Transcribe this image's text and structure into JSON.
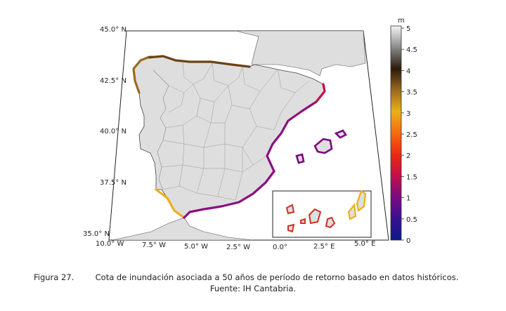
{
  "map": {
    "lat_labels": [
      "45.0° N",
      "42.5° N",
      "40.0° N",
      "37.5° N",
      "35.0° N"
    ],
    "lon_labels": [
      "10.0° W",
      "7.5° W",
      "5.0° W",
      "2.5° W",
      "0.0°",
      "2.5° E",
      "5.0° E"
    ],
    "colors": {
      "land": "#dedede",
      "sea": "#ffffff",
      "border": "#9a9a9a",
      "frame": "#222222"
    }
  },
  "colorbar": {
    "unit": "m",
    "ticks": [
      "5",
      "4.5",
      "4",
      "3.5",
      "3",
      "2.5",
      "2",
      "1.5",
      "1",
      "0.5",
      "0"
    ],
    "range": [
      0,
      5
    ]
  },
  "coast_levels_m": {
    "cantabrian": 3.6,
    "galicia": 3.3,
    "gulf_of_cadiz": 2.7,
    "alboran": 0.9,
    "mediterranean_east": 1.0,
    "balearic": 1.0,
    "canary": 2.0
  },
  "caption": {
    "label": "Figura 27.",
    "text": "Cota de inundación asociada a 50 años de período de retorno basado en datos históricos.",
    "source": "Fuente: IH Cantabria."
  }
}
